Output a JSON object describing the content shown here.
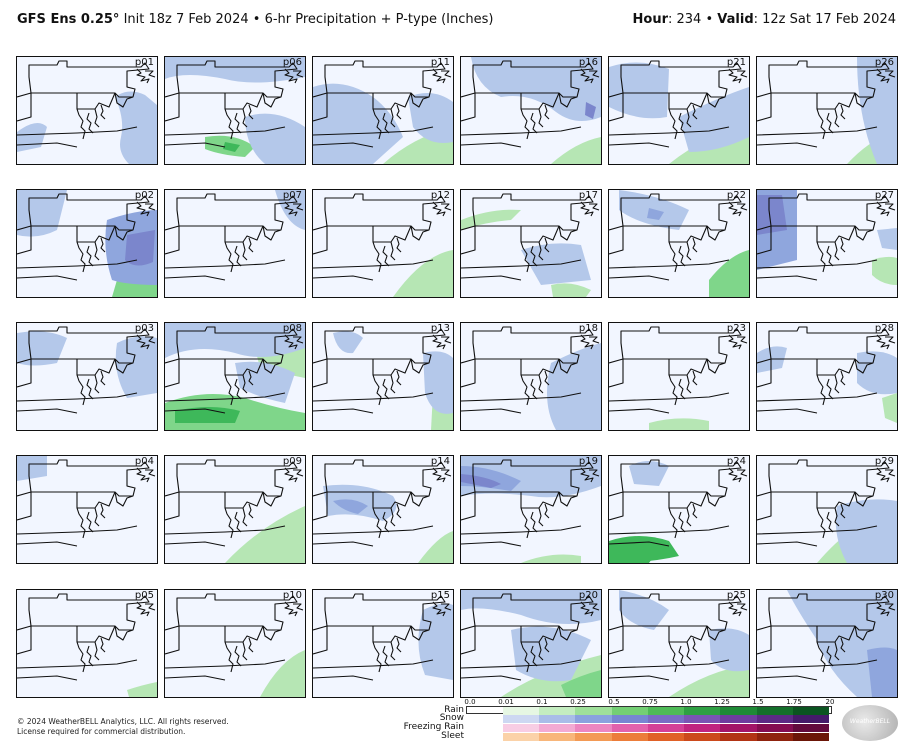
{
  "header": {
    "model": "GFS Ens 0.25°",
    "init": "Init 18z 7 Feb 2024",
    "separator": "•",
    "product": "6-hr Precipitation + P-type (Inches)",
    "hour_label": "Hour",
    "hour_value": ": 234",
    "valid_label": "Valid",
    "valid_value": ": 12z Sat 17 Feb 2024",
    "bullet": "•"
  },
  "colors": {
    "background": "#f2f6ff",
    "snow_light": "#b4c8ea",
    "snow_mid": "#8fa6dd",
    "snow_heavy": "#7b86cc",
    "rain_light": "#b6e6b4",
    "rain_mid": "#7fd68a",
    "rain_heavy": "#3eb85a",
    "freezing_rain": "#f2a6c8"
  },
  "panels": [
    {
      "label": "p01",
      "snow": "s1",
      "rain": "none"
    },
    {
      "label": "p06",
      "snow": "s2",
      "rain": "r1"
    },
    {
      "label": "p11",
      "snow": "s3",
      "rain": "r2"
    },
    {
      "label": "p16",
      "snow": "s4",
      "rain": "r3"
    },
    {
      "label": "p21",
      "snow": "s5",
      "rain": "r4"
    },
    {
      "label": "p26",
      "snow": "s6",
      "rain": "r5"
    },
    {
      "label": "p02",
      "snow": "s7",
      "rain": "r6"
    },
    {
      "label": "p07",
      "snow": "s8",
      "rain": "none"
    },
    {
      "label": "p12",
      "snow": "none",
      "rain": "r7"
    },
    {
      "label": "p17",
      "snow": "s9",
      "rain": "r8"
    },
    {
      "label": "p22",
      "snow": "s10",
      "rain": "r9"
    },
    {
      "label": "p27",
      "snow": "s11",
      "rain": "r10"
    },
    {
      "label": "p03",
      "snow": "s12",
      "rain": "none"
    },
    {
      "label": "p08",
      "snow": "s13",
      "rain": "r11"
    },
    {
      "label": "p13",
      "snow": "s14",
      "rain": "r12"
    },
    {
      "label": "p18",
      "snow": "s15",
      "rain": "none"
    },
    {
      "label": "p23",
      "snow": "none",
      "rain": "r13"
    },
    {
      "label": "p28",
      "snow": "s16",
      "rain": "r14"
    },
    {
      "label": "p04",
      "snow": "s17",
      "rain": "none"
    },
    {
      "label": "p09",
      "snow": "none",
      "rain": "r15"
    },
    {
      "label": "p14",
      "snow": "s18",
      "rain": "r16"
    },
    {
      "label": "p19",
      "snow": "s19",
      "rain": "r17"
    },
    {
      "label": "p24",
      "snow": "s20",
      "rain": "r18"
    },
    {
      "label": "p29",
      "snow": "s21",
      "rain": "r19"
    },
    {
      "label": "p05",
      "snow": "none",
      "rain": "r20"
    },
    {
      "label": "p10",
      "snow": "none",
      "rain": "r21"
    },
    {
      "label": "p15",
      "snow": "s22",
      "rain": "none"
    },
    {
      "label": "p20",
      "snow": "s23",
      "rain": "r22"
    },
    {
      "label": "p25",
      "snow": "s24",
      "rain": "r23"
    },
    {
      "label": "p30",
      "snow": "s25",
      "rain": "r24"
    }
  ],
  "legend": {
    "ticks": [
      "0.0",
      "0.01",
      "0.1",
      "0.25",
      "0.5",
      "0.75",
      "1.0",
      "1.25",
      "1.5",
      "1.75",
      "20"
    ],
    "rows": [
      "Rain",
      "Snow",
      "Freezing Rain",
      "Sleet"
    ],
    "rain_colors": [
      "#e6f7e3",
      "#c4edc0",
      "#9fe09a",
      "#74cf74",
      "#4fbb57",
      "#2fa043",
      "#1f8a36",
      "#146f2a",
      "#0b5420"
    ],
    "snow_colors": [
      "#cdd8f2",
      "#a9bde8",
      "#8aa2de",
      "#7786d2",
      "#7a6cc4",
      "#7a55b3",
      "#6f3d9e",
      "#5c2a85",
      "#451a69"
    ],
    "freezing_colors": [
      "#f8cde4",
      "#f3aad3",
      "#ec86c1",
      "#e262ad",
      "#d43f97",
      "#c02480",
      "#a31568",
      "#840d52",
      "#620a3d"
    ],
    "sleet_colors": [
      "#fbd2a8",
      "#f8b67a",
      "#f39a55",
      "#ec7d3a",
      "#e06127",
      "#cc4a1c",
      "#b23414",
      "#8f230e",
      "#6b1608"
    ]
  },
  "footer": {
    "copyright": "© 2024 WeatherBELL Analytics, LLC. All rights reserved.",
    "license": "License required for commercial distribution.",
    "logo": "WeatherBELL"
  }
}
